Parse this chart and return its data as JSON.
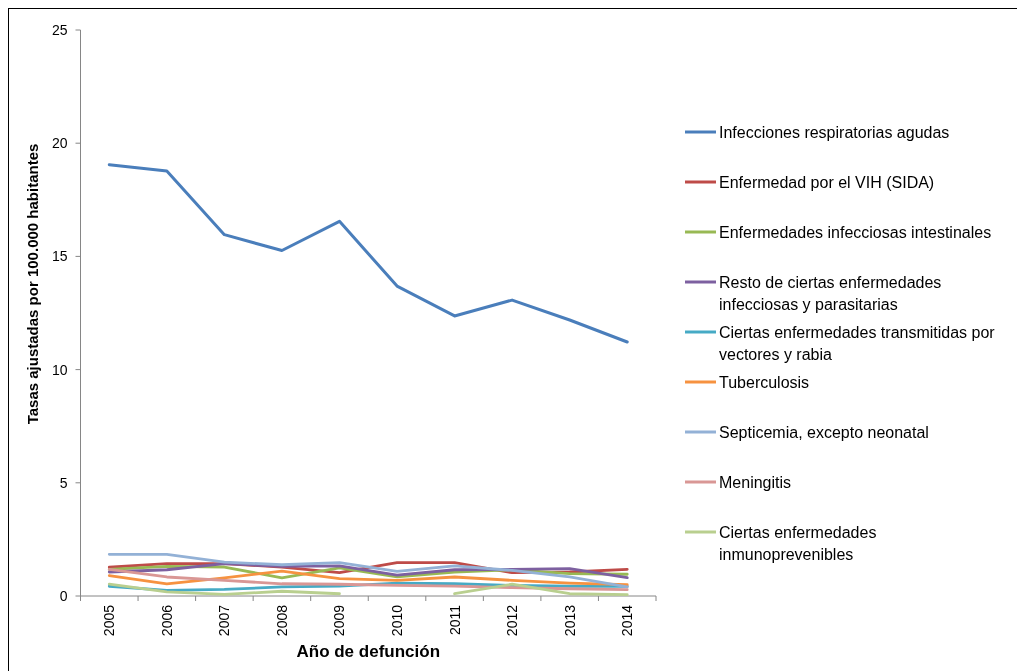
{
  "chart_data": {
    "type": "line",
    "xlabel": "Año de defunción",
    "ylabel": "Tasas ajustadas por 100.000 habitantes",
    "categories": [
      "2005",
      "2006",
      "2007",
      "2008",
      "2009",
      "2010",
      "2011",
      "2012",
      "2013",
      "2014"
    ],
    "ylim": [
      0,
      25
    ],
    "yticks": [
      0,
      5,
      10,
      15,
      20,
      25
    ],
    "legend": "right",
    "series": [
      {
        "name": "Infecciones respiratorias agudas",
        "color": "#4a7ebb",
        "values": [
          19.05,
          18.77,
          15.96,
          15.26,
          16.55,
          13.69,
          12.37,
          13.07,
          12.19,
          11.22
        ]
      },
      {
        "name": "Enfermedad por el VIH (SIDA)",
        "color": "#be4b48",
        "values": [
          1.27,
          1.43,
          1.43,
          1.28,
          1.03,
          1.47,
          1.47,
          1.03,
          1.06,
          1.18
        ]
      },
      {
        "name": "Enfermedades infecciosas intestinales",
        "color": "#98b954",
        "values": [
          1.18,
          1.31,
          1.28,
          0.8,
          1.24,
          0.85,
          1.06,
          1.16,
          0.99,
          0.96
        ]
      },
      {
        "name": "Resto de ciertas enfermedades infecciosas y parasitarias",
        "color": "#7d60a0",
        "values": [
          1.06,
          1.16,
          1.43,
          1.31,
          1.33,
          0.92,
          1.16,
          1.18,
          1.21,
          0.81
        ]
      },
      {
        "name": "Ciertas enfermedades transmitidas por vectores y rabia",
        "color": "#46aac5",
        "values": [
          0.43,
          0.25,
          0.29,
          0.4,
          0.44,
          0.57,
          0.54,
          0.47,
          0.43,
          0.43
        ]
      },
      {
        "name": "Tuberculosis",
        "color": "#f69240",
        "values": [
          0.9,
          0.54,
          0.8,
          1.1,
          0.77,
          0.69,
          0.84,
          0.69,
          0.57,
          0.5
        ]
      },
      {
        "name": "Septicemia, excepto neonatal",
        "color": "#93b1d6",
        "values": [
          1.84,
          1.84,
          1.5,
          1.38,
          1.47,
          1.09,
          1.33,
          1.13,
          0.84,
          0.4
        ]
      },
      {
        "name": "Meningitis",
        "color": "#d99795",
        "values": [
          1.18,
          0.84,
          0.69,
          0.54,
          0.52,
          0.47,
          0.44,
          0.37,
          0.32,
          0.28
        ]
      },
      {
        "name": "Ciertas enfermedades inmunoprevenibles",
        "color": "#b9cf8f",
        "values": [
          0.52,
          0.18,
          0.07,
          0.21,
          0.1,
          null,
          0.1,
          0.52,
          0.1,
          0.06
        ]
      }
    ]
  }
}
